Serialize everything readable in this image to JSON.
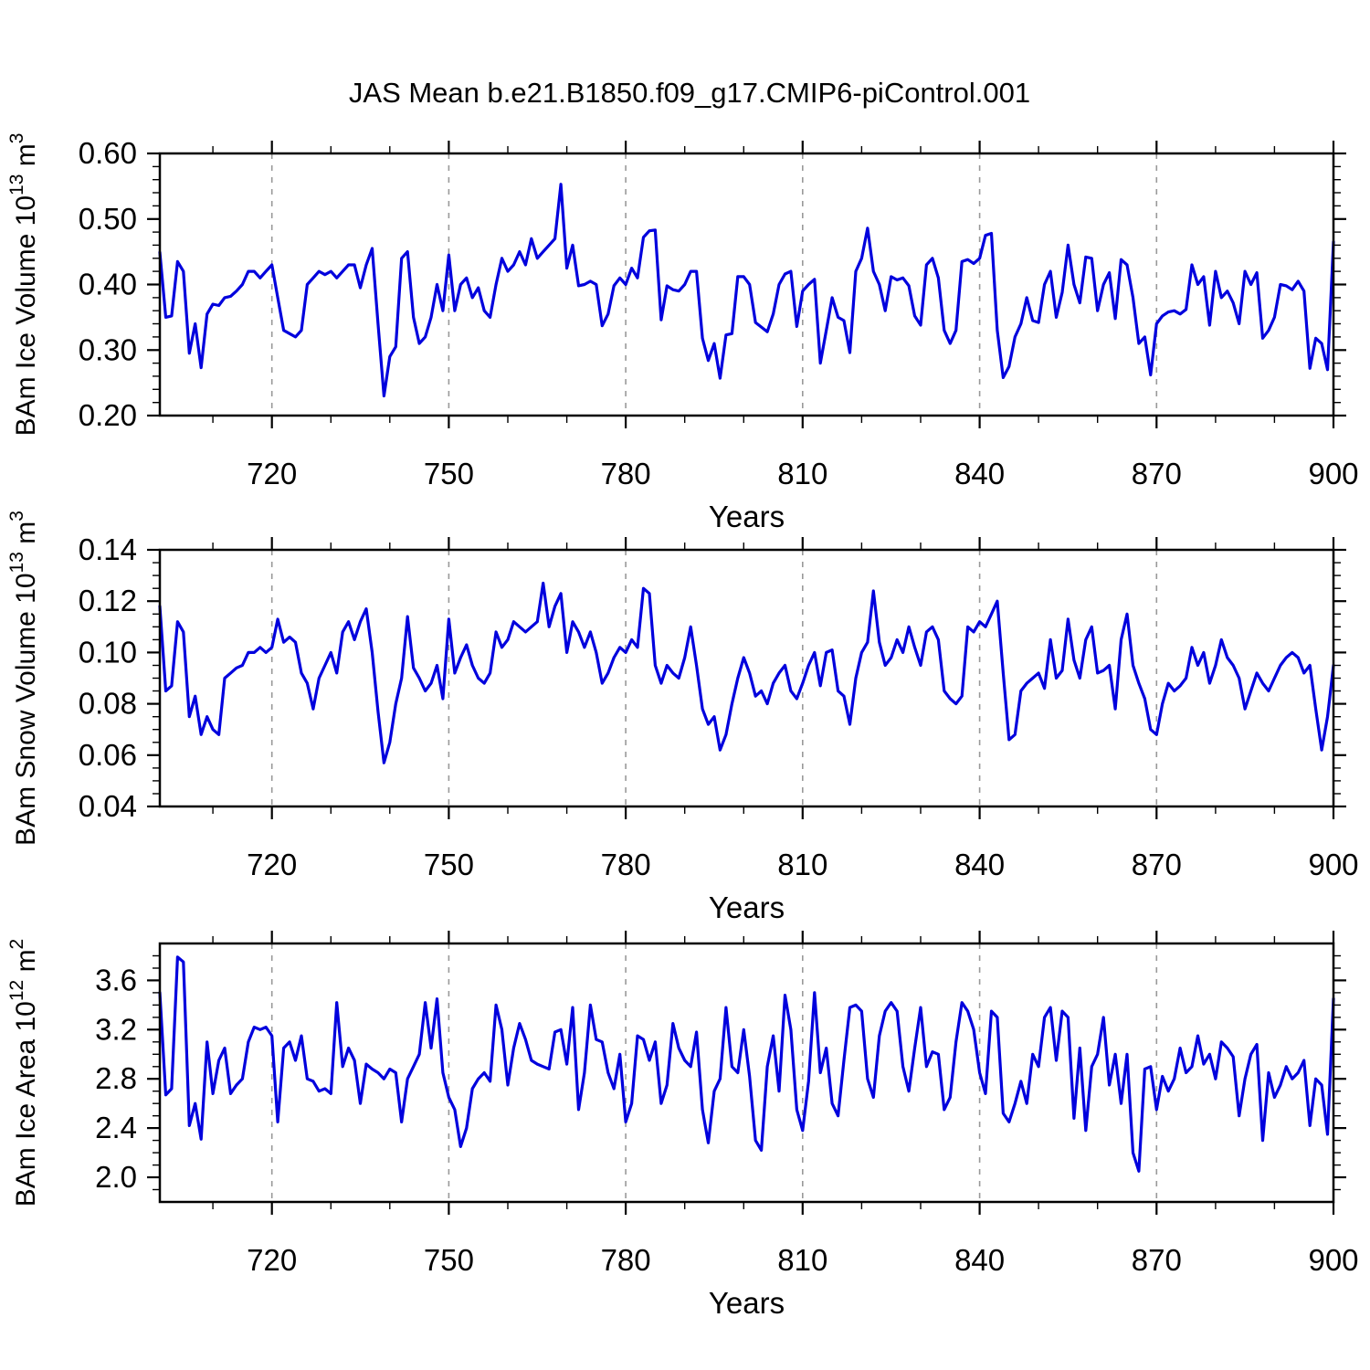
{
  "title": "JAS Mean b.e21.B1850.f09_g17.CMIP6-piControl.001",
  "colors": {
    "line": "#0000DD",
    "grid": "#999999",
    "frame": "#000000",
    "background": "#FFFFFF",
    "text": "#000000"
  },
  "chart_data": [
    {
      "type": "line",
      "ylabel": "BAm Ice Volume 10^13 m^3",
      "ylabel_parts": [
        {
          "t": "BAm Ice Volume 10"
        },
        {
          "t": "13",
          "sup": true
        },
        {
          "t": " m"
        },
        {
          "t": "3",
          "sup": true
        }
      ],
      "xlabel": "Years",
      "x_start": 701,
      "x_step": 1,
      "xlim": [
        701,
        900
      ],
      "ylim": [
        0.2,
        0.6
      ],
      "xticks": [
        "720",
        "750",
        "780",
        "810",
        "840",
        "870",
        "900"
      ],
      "x_minor_step": 10,
      "yticks": [
        "0.20",
        "0.30",
        "0.40",
        "0.50",
        "0.60"
      ],
      "y_minor_step": 0.02,
      "grid_at": [
        720,
        750,
        780,
        810,
        840,
        870
      ],
      "grid_on": true,
      "legend": "none",
      "values": [
        0.449,
        0.35,
        0.352,
        0.435,
        0.42,
        0.295,
        0.34,
        0.273,
        0.355,
        0.37,
        0.368,
        0.38,
        0.382,
        0.39,
        0.4,
        0.42,
        0.42,
        0.41,
        0.42,
        0.43,
        0.38,
        0.33,
        0.325,
        0.32,
        0.33,
        0.4,
        0.41,
        0.42,
        0.415,
        0.42,
        0.41,
        0.42,
        0.43,
        0.43,
        0.395,
        0.43,
        0.455,
        0.34,
        0.23,
        0.29,
        0.305,
        0.44,
        0.45,
        0.35,
        0.31,
        0.32,
        0.35,
        0.4,
        0.36,
        0.445,
        0.36,
        0.4,
        0.41,
        0.38,
        0.395,
        0.36,
        0.35,
        0.4,
        0.44,
        0.42,
        0.43,
        0.45,
        0.43,
        0.47,
        0.44,
        0.45,
        0.46,
        0.47,
        0.553,
        0.425,
        0.46,
        0.398,
        0.4,
        0.405,
        0.4,
        0.337,
        0.355,
        0.398,
        0.41,
        0.4,
        0.425,
        0.41,
        0.472,
        0.482,
        0.483,
        0.346,
        0.398,
        0.392,
        0.39,
        0.4,
        0.42,
        0.42,
        0.318,
        0.284,
        0.31,
        0.257,
        0.323,
        0.325,
        0.412,
        0.412,
        0.4,
        0.342,
        0.335,
        0.328,
        0.355,
        0.4,
        0.416,
        0.42,
        0.336,
        0.39,
        0.4,
        0.408,
        0.28,
        0.33,
        0.38,
        0.35,
        0.345,
        0.296,
        0.42,
        0.44,
        0.486,
        0.42,
        0.4,
        0.36,
        0.412,
        0.407,
        0.41,
        0.398,
        0.352,
        0.338,
        0.43,
        0.44,
        0.41,
        0.33,
        0.31,
        0.33,
        0.435,
        0.438,
        0.432,
        0.44,
        0.475,
        0.478,
        0.33,
        0.258,
        0.275,
        0.32,
        0.34,
        0.38,
        0.345,
        0.342,
        0.4,
        0.42,
        0.35,
        0.388,
        0.46,
        0.4,
        0.372,
        0.442,
        0.44,
        0.36,
        0.4,
        0.418,
        0.348,
        0.438,
        0.43,
        0.38,
        0.31,
        0.32,
        0.262,
        0.34,
        0.352,
        0.358,
        0.36,
        0.355,
        0.362,
        0.43,
        0.4,
        0.412,
        0.338,
        0.42,
        0.38,
        0.39,
        0.372,
        0.34,
        0.42,
        0.4,
        0.418,
        0.318,
        0.33,
        0.35,
        0.4,
        0.398,
        0.392,
        0.405,
        0.39,
        0.272,
        0.318,
        0.31,
        0.27,
        0.465
      ]
    },
    {
      "type": "line",
      "ylabel": "BAm Snow Volume 10^13 m^3",
      "ylabel_parts": [
        {
          "t": "BAm Snow Volume 10"
        },
        {
          "t": "13",
          "sup": true
        },
        {
          "t": " m"
        },
        {
          "t": "3",
          "sup": true
        }
      ],
      "xlabel": "Years",
      "x_start": 701,
      "x_step": 1,
      "xlim": [
        701,
        900
      ],
      "ylim": [
        0.04,
        0.14
      ],
      "xticks": [
        "720",
        "750",
        "780",
        "810",
        "840",
        "870",
        "900"
      ],
      "x_minor_step": 10,
      "yticks": [
        "0.04",
        "0.06",
        "0.08",
        "0.10",
        "0.12",
        "0.14"
      ],
      "y_minor_step": 0.005,
      "grid_at": [
        720,
        750,
        780,
        810,
        840,
        870
      ],
      "grid_on": true,
      "legend": "none",
      "values": [
        0.118,
        0.085,
        0.087,
        0.112,
        0.108,
        0.075,
        0.083,
        0.068,
        0.075,
        0.07,
        0.068,
        0.09,
        0.092,
        0.094,
        0.095,
        0.1,
        0.1,
        0.102,
        0.1,
        0.102,
        0.113,
        0.104,
        0.106,
        0.104,
        0.092,
        0.088,
        0.078,
        0.09,
        0.095,
        0.1,
        0.092,
        0.108,
        0.112,
        0.105,
        0.112,
        0.117,
        0.1,
        0.077,
        0.057,
        0.065,
        0.08,
        0.09,
        0.114,
        0.094,
        0.09,
        0.085,
        0.088,
        0.095,
        0.082,
        0.113,
        0.092,
        0.098,
        0.103,
        0.095,
        0.09,
        0.088,
        0.092,
        0.108,
        0.102,
        0.105,
        0.112,
        0.11,
        0.108,
        0.11,
        0.112,
        0.127,
        0.11,
        0.118,
        0.123,
        0.1,
        0.112,
        0.108,
        0.102,
        0.108,
        0.1,
        0.088,
        0.092,
        0.098,
        0.102,
        0.1,
        0.105,
        0.102,
        0.125,
        0.123,
        0.095,
        0.088,
        0.095,
        0.092,
        0.09,
        0.098,
        0.11,
        0.095,
        0.078,
        0.072,
        0.075,
        0.062,
        0.068,
        0.08,
        0.09,
        0.098,
        0.092,
        0.083,
        0.085,
        0.08,
        0.088,
        0.092,
        0.095,
        0.085,
        0.082,
        0.088,
        0.095,
        0.1,
        0.087,
        0.1,
        0.101,
        0.085,
        0.083,
        0.072,
        0.09,
        0.1,
        0.104,
        0.124,
        0.104,
        0.095,
        0.098,
        0.105,
        0.1,
        0.11,
        0.102,
        0.095,
        0.108,
        0.11,
        0.105,
        0.085,
        0.082,
        0.08,
        0.083,
        0.11,
        0.108,
        0.112,
        0.11,
        0.115,
        0.12,
        0.092,
        0.066,
        0.068,
        0.085,
        0.088,
        0.09,
        0.092,
        0.086,
        0.105,
        0.09,
        0.093,
        0.113,
        0.097,
        0.09,
        0.105,
        0.11,
        0.092,
        0.093,
        0.095,
        0.078,
        0.105,
        0.115,
        0.095,
        0.088,
        0.082,
        0.07,
        0.068,
        0.08,
        0.088,
        0.085,
        0.087,
        0.09,
        0.102,
        0.095,
        0.1,
        0.088,
        0.095,
        0.105,
        0.098,
        0.095,
        0.09,
        0.078,
        0.085,
        0.092,
        0.088,
        0.085,
        0.09,
        0.095,
        0.098,
        0.1,
        0.098,
        0.092,
        0.095,
        0.078,
        0.062,
        0.075,
        0.095
      ]
    },
    {
      "type": "line",
      "ylabel": "BAm Ice Area 10^12 m^2",
      "ylabel_parts": [
        {
          "t": "BAm Ice Area 10"
        },
        {
          "t": "12",
          "sup": true
        },
        {
          "t": " m"
        },
        {
          "t": "2",
          "sup": true
        }
      ],
      "xlabel": "Years",
      "x_start": 701,
      "x_step": 1,
      "xlim": [
        701,
        900
      ],
      "ylim": [
        1.8,
        3.9
      ],
      "xticks": [
        "720",
        "750",
        "780",
        "810",
        "840",
        "870",
        "900"
      ],
      "x_minor_step": 10,
      "yticks": [
        "2.0",
        "2.4",
        "2.8",
        "3.2",
        "3.6"
      ],
      "y_minor_step": 0.1,
      "grid_at": [
        720,
        750,
        780,
        810,
        840,
        870
      ],
      "grid_on": true,
      "legend": "none",
      "values": [
        3.5,
        2.67,
        2.72,
        3.79,
        3.75,
        2.42,
        2.6,
        2.31,
        3.1,
        2.68,
        2.95,
        3.05,
        2.68,
        2.75,
        2.8,
        3.1,
        3.22,
        3.2,
        3.22,
        3.15,
        2.45,
        3.05,
        3.1,
        2.95,
        3.15,
        2.8,
        2.78,
        2.7,
        2.72,
        2.68,
        3.42,
        2.9,
        3.05,
        2.95,
        2.6,
        2.92,
        2.88,
        2.85,
        2.8,
        2.88,
        2.85,
        2.45,
        2.8,
        2.9,
        3.0,
        3.42,
        3.05,
        3.45,
        2.85,
        2.65,
        2.55,
        2.25,
        2.4,
        2.72,
        2.8,
        2.85,
        2.78,
        3.4,
        3.2,
        2.75,
        3.05,
        3.25,
        3.12,
        2.95,
        2.92,
        2.9,
        2.88,
        3.18,
        3.2,
        2.92,
        3.38,
        2.55,
        2.85,
        3.4,
        3.12,
        3.1,
        2.85,
        2.72,
        3.0,
        2.45,
        2.6,
        3.15,
        3.12,
        2.95,
        3.1,
        2.6,
        2.75,
        3.25,
        3.05,
        2.95,
        2.9,
        3.18,
        2.55,
        2.28,
        2.7,
        2.8,
        3.38,
        2.9,
        2.85,
        3.2,
        2.82,
        2.3,
        2.22,
        2.9,
        3.15,
        2.7,
        3.48,
        3.2,
        2.55,
        2.38,
        2.78,
        3.5,
        2.85,
        3.05,
        2.6,
        2.5,
        2.95,
        3.38,
        3.4,
        3.35,
        2.8,
        2.65,
        3.15,
        3.35,
        3.42,
        3.35,
        2.9,
        2.7,
        3.05,
        3.38,
        2.9,
        3.02,
        3.0,
        2.55,
        2.65,
        3.1,
        3.42,
        3.35,
        3.2,
        2.85,
        2.68,
        3.35,
        3.3,
        2.52,
        2.45,
        2.6,
        2.78,
        2.6,
        3.0,
        2.9,
        3.3,
        3.38,
        2.95,
        3.35,
        3.3,
        2.48,
        3.05,
        2.38,
        2.9,
        3.0,
        3.3,
        2.75,
        3.0,
        2.6,
        3.0,
        2.2,
        2.05,
        2.88,
        2.9,
        2.55,
        2.82,
        2.7,
        2.8,
        3.05,
        2.85,
        2.9,
        3.15,
        2.92,
        3.0,
        2.8,
        3.1,
        3.05,
        2.98,
        2.5,
        2.8,
        3.0,
        3.08,
        2.3,
        2.85,
        2.65,
        2.75,
        2.9,
        2.8,
        2.85,
        2.95,
        2.42,
        2.8,
        2.75,
        2.35,
        3.45
      ]
    }
  ]
}
